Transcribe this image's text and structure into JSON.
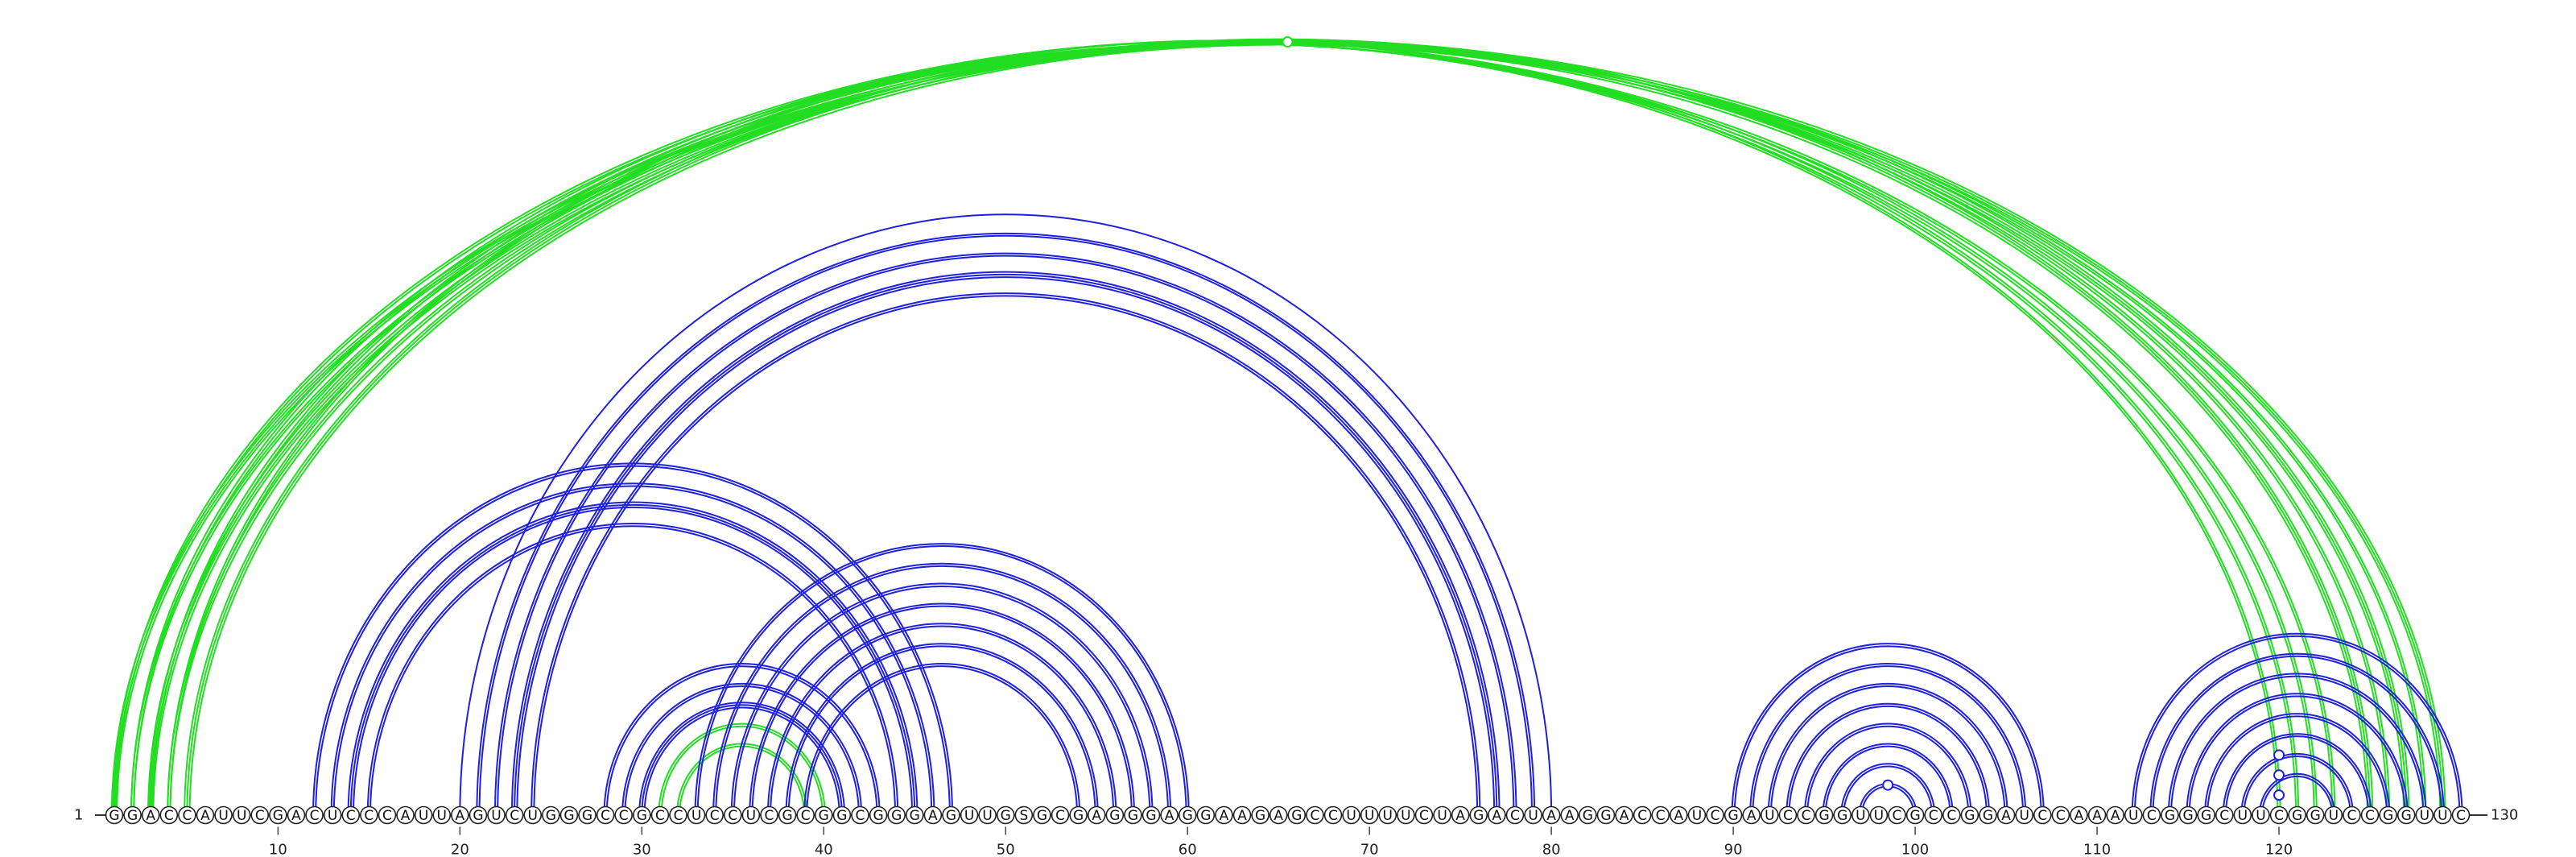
{
  "sequence": "GGACCAUUCGACUCCCAUUAGUCUGGGCCGCCUCCUCGCGGCGGGAGUUGSGCGAGGGAGGAAGAGCCUUUUCUAGACUAAGGACCAUCGAUCCGGUUCGCCGGAUCCAAAUCGGGCUUCGGUCCGGUUC",
  "start_label": "1",
  "end_label": "130",
  "ticks": [
    10,
    20,
    30,
    40,
    50,
    60,
    70,
    80,
    90,
    100,
    110,
    120
  ],
  "colors": {
    "blue": "#1f1fe0",
    "green": "#22dd22"
  },
  "arcs": [
    {
      "i": 1,
      "j": 129,
      "color": "green",
      "doubles": 3
    },
    {
      "i": 2,
      "j": 128,
      "color": "green",
      "doubles": 2
    },
    {
      "i": 3,
      "j": 127,
      "color": "green",
      "doubles": 3
    },
    {
      "i": 4,
      "j": 126,
      "color": "green",
      "doubles": 2
    },
    {
      "i": 5,
      "j": 125,
      "color": "green",
      "doubles": 3
    },
    {
      "i": 1,
      "j": 123,
      "color": "green",
      "doubles": 2
    },
    {
      "i": 2,
      "j": 122,
      "color": "green",
      "doubles": 2
    },
    {
      "i": 3,
      "j": 121,
      "color": "green",
      "doubles": 2
    },
    {
      "i": 4,
      "j": 120,
      "color": "green",
      "doubles": 2
    },
    {
      "i": 12,
      "j": 47,
      "color": "blue",
      "doubles": 2
    },
    {
      "i": 13,
      "j": 46,
      "color": "blue",
      "doubles": 2
    },
    {
      "i": 14,
      "j": 45,
      "color": "blue",
      "doubles": 3
    },
    {
      "i": 15,
      "j": 44,
      "color": "blue",
      "doubles": 2
    },
    {
      "i": 20,
      "j": 80,
      "color": "blue",
      "doubles": 1
    },
    {
      "i": 21,
      "j": 79,
      "color": "blue",
      "doubles": 2
    },
    {
      "i": 22,
      "j": 78,
      "color": "blue",
      "doubles": 2
    },
    {
      "i": 23,
      "j": 77,
      "color": "blue",
      "doubles": 3
    },
    {
      "i": 24,
      "j": 76,
      "color": "blue",
      "doubles": 2
    },
    {
      "i": 28,
      "j": 43,
      "color": "blue",
      "doubles": 2
    },
    {
      "i": 29,
      "j": 42,
      "color": "blue",
      "doubles": 2
    },
    {
      "i": 30,
      "j": 41,
      "color": "blue",
      "doubles": 3
    },
    {
      "i": 31,
      "j": 40,
      "color": "green",
      "doubles": 2
    },
    {
      "i": 32,
      "j": 39,
      "color": "green",
      "doubles": 2
    },
    {
      "i": 33,
      "j": 60,
      "color": "blue",
      "doubles": 2
    },
    {
      "i": 34,
      "j": 59,
      "color": "blue",
      "doubles": 2
    },
    {
      "i": 35,
      "j": 58,
      "color": "blue",
      "doubles": 2
    },
    {
      "i": 36,
      "j": 57,
      "color": "blue",
      "doubles": 2
    },
    {
      "i": 37,
      "j": 56,
      "color": "blue",
      "doubles": 2
    },
    {
      "i": 38,
      "j": 55,
      "color": "blue",
      "doubles": 2
    },
    {
      "i": 39,
      "j": 54,
      "color": "blue",
      "doubles": 2
    },
    {
      "i": 90,
      "j": 107,
      "color": "blue",
      "doubles": 2
    },
    {
      "i": 91,
      "j": 106,
      "color": "blue",
      "doubles": 2
    },
    {
      "i": 92,
      "j": 105,
      "color": "blue",
      "doubles": 2
    },
    {
      "i": 93,
      "j": 104,
      "color": "blue",
      "doubles": 2
    },
    {
      "i": 94,
      "j": 103,
      "color": "blue",
      "doubles": 2
    },
    {
      "i": 95,
      "j": 102,
      "color": "blue",
      "doubles": 2
    },
    {
      "i": 96,
      "j": 101,
      "color": "blue",
      "doubles": 2
    },
    {
      "i": 97,
      "j": 100,
      "color": "blue",
      "doubles": 2
    },
    {
      "i": 112,
      "j": 130,
      "color": "blue",
      "doubles": 2
    },
    {
      "i": 113,
      "j": 129,
      "color": "blue",
      "doubles": 2
    },
    {
      "i": 114,
      "j": 128,
      "color": "blue",
      "doubles": 2
    },
    {
      "i": 115,
      "j": 127,
      "color": "blue",
      "doubles": 2
    },
    {
      "i": 116,
      "j": 126,
      "color": "blue",
      "doubles": 2
    },
    {
      "i": 117,
      "j": 125,
      "color": "blue",
      "doubles": 2
    },
    {
      "i": 118,
      "j": 124,
      "color": "blue",
      "doubles": 2
    },
    {
      "i": 119,
      "j": 123,
      "color": "blue",
      "doubles": 2
    }
  ],
  "arc_markers": [
    {
      "i": 1,
      "j": 130,
      "color": "green"
    },
    {
      "i": 97,
      "j": 100,
      "color": "blue"
    },
    {
      "i": 117,
      "j": 123,
      "color": "blue"
    },
    {
      "i": 118,
      "j": 122,
      "color": "blue"
    },
    {
      "i": 119,
      "j": 121,
      "color": "blue"
    }
  ]
}
